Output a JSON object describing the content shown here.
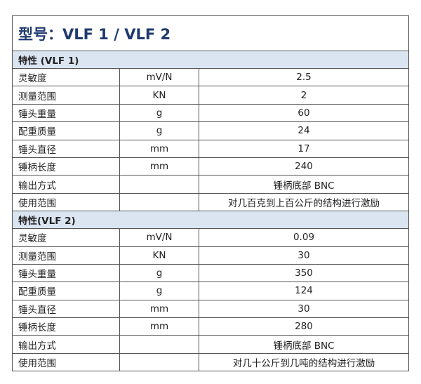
{
  "title": "型号：VLF 1 / VLF 2",
  "sections": [
    {
      "header": "特性 (VLF 1)",
      "rows": [
        [
          "灵敏度",
          "mV/N",
          "2.5"
        ],
        [
          "测量范围",
          "KN",
          "2"
        ],
        [
          "锤头重量",
          "g",
          "60"
        ],
        [
          "配重质量",
          "g",
          "24"
        ],
        [
          "锤头直径",
          "mm",
          "17"
        ],
        [
          "锤柄长度",
          "mm",
          "240"
        ],
        [
          "输出方式",
          "",
          "锤柄底部 BNC"
        ],
        [
          "使用范围",
          "",
          "对几百克到上百公斤的结构进行激励"
        ]
      ]
    },
    {
      "header": "特性(VLF 2)",
      "rows": [
        [
          "灵敏度",
          "mV/N",
          "0.09"
        ],
        [
          "测量范围",
          "KN",
          "30"
        ],
        [
          "锤头重量",
          "g",
          "350"
        ],
        [
          "配重质量",
          "g",
          "124"
        ],
        [
          "锤头直径",
          "mm",
          "30"
        ],
        [
          "锤柄长度",
          "mm",
          "280"
        ],
        [
          "输出方式",
          "",
          "锤柄底部 BNC"
        ],
        [
          "使用范围",
          "",
          "对几十公斤到几吨的结构进行激励"
        ]
      ]
    }
  ],
  "colors": {
    "title": "#1f3a6e",
    "header_bg": "#dbe5f1"
  }
}
